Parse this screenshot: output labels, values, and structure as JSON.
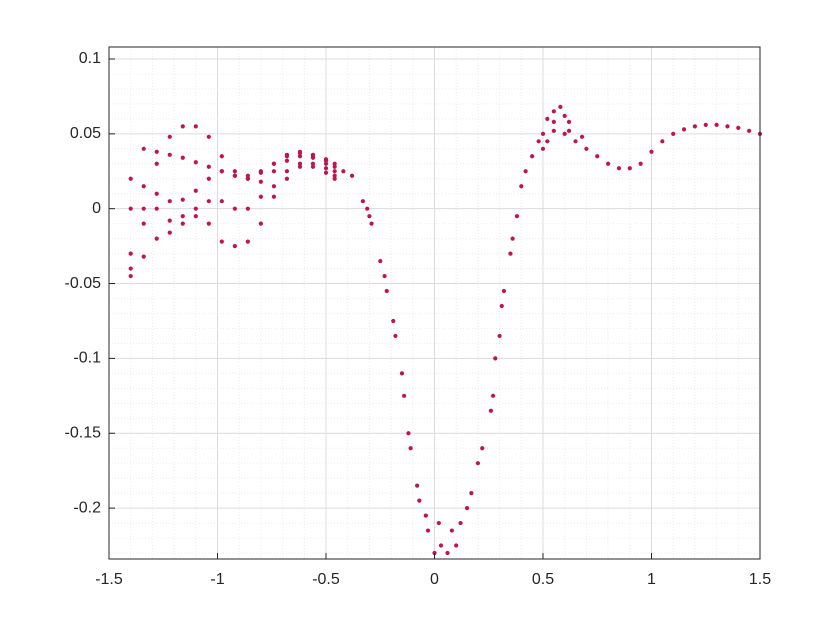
{
  "chart_data": {
    "type": "scatter",
    "color": "#c0144c",
    "grid": true,
    "minor_grid": true,
    "xlim": [
      -1.5,
      1.5
    ],
    "ylim": [
      -0.234,
      0.108
    ],
    "xticks": [
      -1.5,
      -1,
      -0.5,
      0,
      0.5,
      1,
      1.5
    ],
    "yticks": [
      -0.2,
      -0.15,
      -0.1,
      -0.05,
      0,
      0.05,
      0.1
    ],
    "x": [
      -1.4,
      -1.34,
      -1.28,
      -1.22,
      -1.16,
      -1.1,
      -1.04,
      -0.98,
      -0.92,
      -0.86,
      -0.8,
      -0.74,
      -0.68,
      -0.62,
      -0.56,
      -0.5,
      -0.46,
      -1.4,
      -1.34,
      -1.28,
      -1.22,
      -1.16,
      -1.1,
      -1.04,
      -0.98,
      -0.92,
      -0.86,
      -0.8,
      -0.74,
      -0.68,
      -0.62,
      -0.56,
      -0.5,
      -0.46,
      -1.4,
      -1.34,
      -1.28,
      -1.22,
      -1.16,
      -1.1,
      -1.04,
      -0.98,
      -0.92,
      -0.86,
      -0.8,
      -0.74,
      -0.68,
      -0.62,
      -0.56,
      -0.5,
      -0.46,
      -1.4,
      -1.34,
      -1.28,
      -1.22,
      -1.16,
      -1.1,
      -1.04,
      -0.98,
      -0.92,
      -0.86,
      -0.8,
      -0.74,
      -0.68,
      -0.62,
      -0.56,
      -0.5,
      -0.46,
      -1.4,
      -1.34,
      -1.28,
      -1.22,
      -1.16,
      -1.1,
      -1.04,
      -0.98,
      -0.92,
      -0.86,
      -0.8,
      -0.74,
      -0.68,
      -0.62,
      -0.56,
      -0.5,
      -0.46,
      -0.42,
      -0.38,
      -0.33,
      -0.31,
      -0.3,
      -0.29,
      -0.25,
      -0.23,
      -0.22,
      -0.19,
      -0.18,
      -0.15,
      -0.14,
      -0.12,
      -0.11,
      -0.08,
      -0.07,
      -0.04,
      -0.03,
      0,
      0.02,
      0.03,
      0.06,
      0.08,
      0.1,
      0.12,
      0.15,
      0.17,
      0.2,
      0.22,
      0.26,
      0.27,
      0.28,
      0.3,
      0.31,
      0.32,
      0.35,
      0.36,
      0.38,
      0.4,
      0.42,
      0.45,
      0.48,
      0.5,
      0.52,
      0.55,
      0.58,
      0.6,
      0.62,
      0.5,
      0.55,
      0.6,
      0.65,
      0.7,
      0.75,
      0.8,
      0.85,
      0.9,
      0.95,
      1,
      1.05,
      1.1,
      1.15,
      1.2,
      1.25,
      1.3,
      1.35,
      1.4,
      1.45,
      1.5,
      0.55,
      0.52,
      0.62,
      0.68
    ],
    "values": [
      -0.04,
      0.0,
      0.03,
      0.048,
      0.055,
      0.055,
      0.048,
      0.035,
      0.022,
      0.02,
      0.024,
      0.03,
      0.036,
      0.038,
      0.036,
      0.033,
      0.03,
      0.0,
      0.04,
      0.038,
      0.036,
      0.034,
      0.031,
      0.028,
      0.025,
      0.022,
      0.022,
      0.025,
      0.03,
      0.035,
      0.037,
      0.035,
      0.032,
      0.028,
      0.02,
      0.015,
      0.01,
      0.005,
      0.006,
      0.012,
      0.02,
      0.025,
      0.025,
      0.02,
      0.018,
      0.025,
      0.032,
      0.035,
      0.034,
      0.03,
      0.025,
      -0.03,
      -0.01,
      0.0,
      -0.008,
      -0.005,
      0.0,
      0.005,
      0.005,
      0.0,
      0.0,
      0.008,
      0.015,
      0.025,
      0.03,
      0.03,
      0.027,
      0.022,
      -0.045,
      -0.032,
      -0.02,
      -0.016,
      -0.01,
      -0.005,
      -0.01,
      -0.022,
      -0.025,
      -0.022,
      -0.01,
      0.008,
      0.02,
      0.028,
      0.028,
      0.024,
      0.02,
      0.025,
      0.022,
      0.005,
      0.0,
      -0.005,
      -0.01,
      -0.035,
      -0.045,
      -0.055,
      -0.075,
      -0.085,
      -0.11,
      -0.125,
      -0.15,
      -0.16,
      -0.185,
      -0.195,
      -0.205,
      -0.215,
      -0.23,
      -0.21,
      -0.225,
      -0.23,
      -0.215,
      -0.225,
      -0.21,
      -0.2,
      -0.19,
      -0.17,
      -0.16,
      -0.135,
      -0.125,
      -0.1,
      -0.085,
      -0.065,
      -0.055,
      -0.03,
      -0.02,
      -0.005,
      0.015,
      0.025,
      0.035,
      0.045,
      0.05,
      0.06,
      0.065,
      0.068,
      0.062,
      0.058,
      0.04,
      0.052,
      0.05,
      0.045,
      0.04,
      0.035,
      0.03,
      0.027,
      0.027,
      0.03,
      0.038,
      0.045,
      0.05,
      0.053,
      0.055,
      0.056,
      0.056,
      0.055,
      0.054,
      0.052,
      0.05,
      0.058,
      0.045,
      0.052,
      0.048
    ]
  }
}
